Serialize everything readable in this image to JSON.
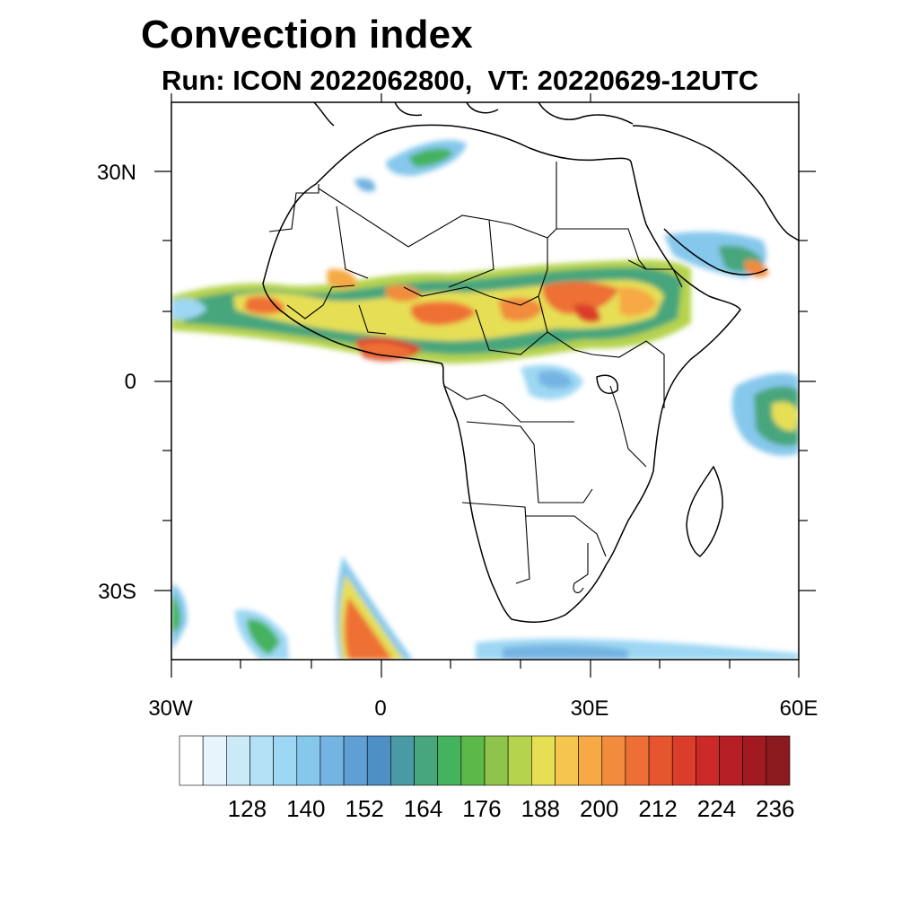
{
  "header": {
    "title": "Convection index",
    "subtitle": "Run: ICON 2022062800,  VT: 20220629-12UTC"
  },
  "axes": {
    "lat_labels": [
      "30N",
      "0",
      "30S"
    ],
    "lon_labels": [
      "30W",
      "0",
      "30E",
      "60E"
    ]
  },
  "colorbar": {
    "labels": [
      "128",
      "140",
      "152",
      "164",
      "176",
      "188",
      "200",
      "212",
      "224",
      "236"
    ],
    "colors": [
      "#ffffff",
      "#e6f4fb",
      "#cbe9f7",
      "#b3e0f5",
      "#9dd7f3",
      "#86c8ec",
      "#74b4e2",
      "#5f9fd3",
      "#4e8fc5",
      "#4a9aa5",
      "#47a67c",
      "#45b25e",
      "#5db84a",
      "#8fc44c",
      "#b6d34e",
      "#e6df54",
      "#f5c54d",
      "#f6a945",
      "#f28b3e",
      "#ee6f35",
      "#e6552e",
      "#db3d2b",
      "#cc2a29",
      "#b71f26",
      "#a11a22",
      "#8b1a1e"
    ]
  },
  "map_meta": {
    "projection": "cylindrical-equidistant",
    "lon_range": [
      -30,
      60
    ],
    "lat_range": [
      -40,
      40
    ]
  }
}
